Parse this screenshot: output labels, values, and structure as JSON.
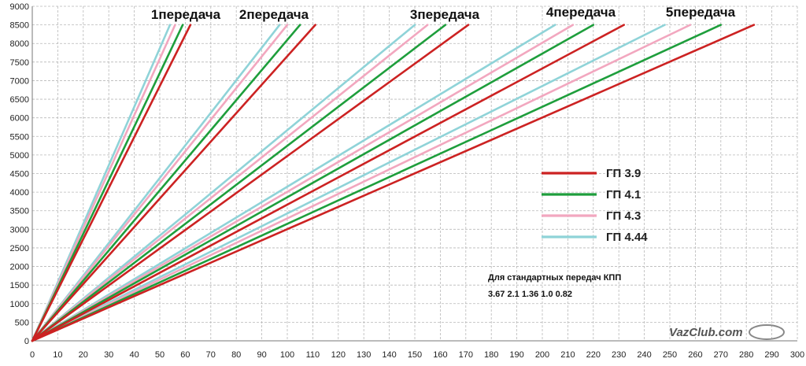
{
  "chart_data": {
    "type": "line",
    "xlim": [
      0,
      300
    ],
    "ylim": [
      0,
      9000
    ],
    "x_ticks": [
      "0",
      "10",
      "20",
      "30",
      "40",
      "50",
      "60",
      "70",
      "80",
      "90",
      "100",
      "110",
      "120",
      "130",
      "140",
      "150",
      "160",
      "170",
      "180",
      "190",
      "200",
      "210",
      "220",
      "230",
      "240",
      "250",
      "260",
      "270",
      "280",
      "290",
      "300"
    ],
    "y_ticks": [
      "0",
      "500",
      "1000",
      "1500",
      "2000",
      "2500",
      "3000",
      "3500",
      "4000",
      "4500",
      "5000",
      "5500",
      "6000",
      "6500",
      "7000",
      "7500",
      "8000",
      "8500",
      "9000"
    ],
    "grid": true,
    "gear_labels": [
      "1передача",
      "2передача",
      "3передача",
      "4передача",
      "5передача"
    ],
    "series": [
      {
        "name": "ГП 3.9",
        "color": "#cc2222",
        "end_x": [
          62,
          111,
          171,
          232,
          283
        ],
        "end_y": 8500
      },
      {
        "name": "ГП 4.1",
        "color": "#1e9e3c",
        "end_x": [
          59,
          105,
          162,
          220,
          270
        ],
        "end_y": 8500
      },
      {
        "name": "ГП 4.3",
        "color": "#f2a7bf",
        "end_x": [
          56,
          100,
          155,
          212,
          258
        ],
        "end_y": 8500
      },
      {
        "name": "ГП 4.44",
        "color": "#8fd3d8",
        "end_x": [
          54,
          97,
          150,
          205,
          248
        ],
        "end_y": 8500
      }
    ],
    "annotation": [
      "Для стандартных передач КПП",
      "3.67 2.1 1.36 1.0 0.82"
    ],
    "legend_position": "right"
  },
  "watermark": "VazClub.com"
}
